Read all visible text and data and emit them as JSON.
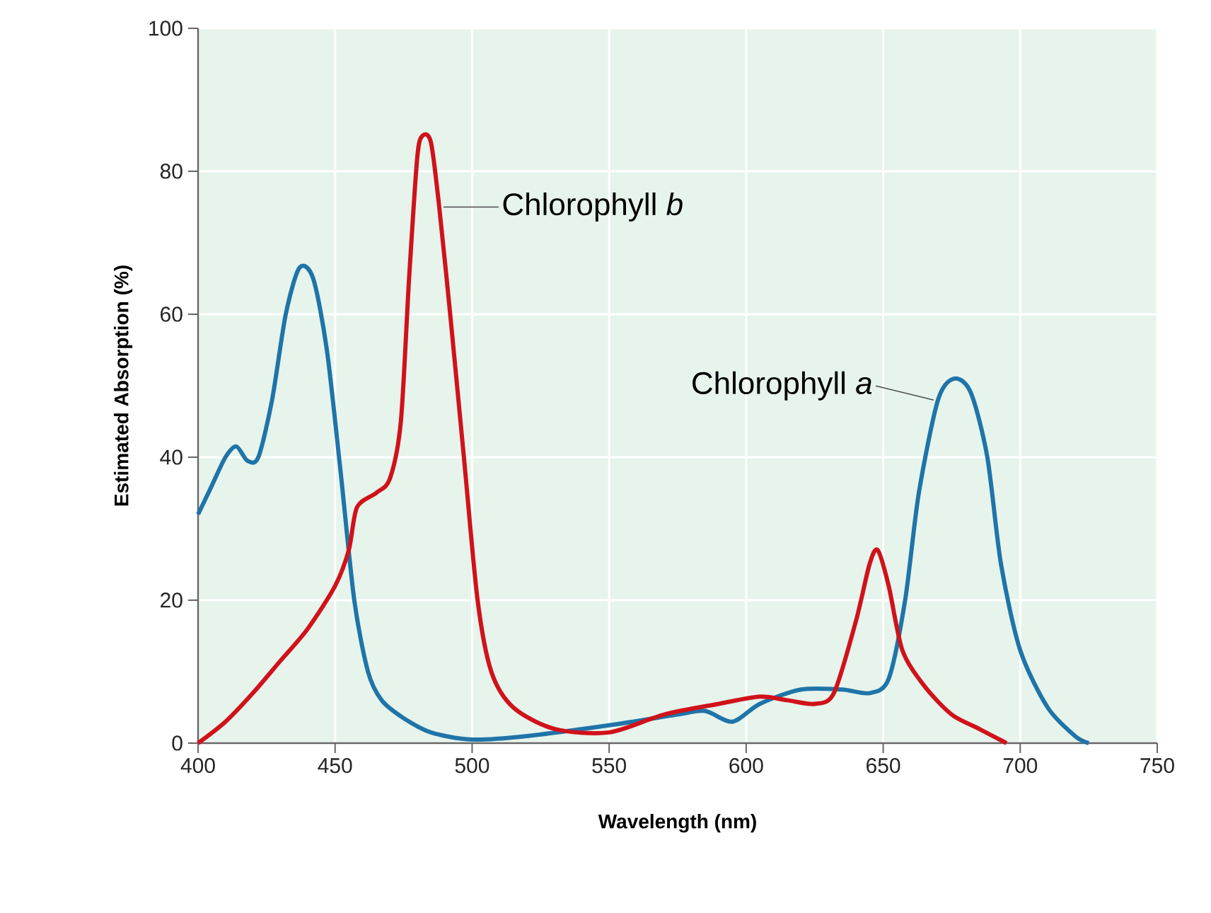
{
  "chart_data": {
    "type": "line",
    "xlabel": "Wavelength (nm)",
    "ylabel": "Estimated Absorption (%)",
    "xlim": [
      400,
      750
    ],
    "ylim": [
      0,
      100
    ],
    "xticks": [
      400,
      450,
      500,
      550,
      600,
      650,
      700,
      750
    ],
    "yticks": [
      0,
      20,
      40,
      60,
      80,
      100
    ],
    "grid": true,
    "marker": "none",
    "line_style": "solid",
    "series": [
      {
        "name": "Chlorophyll *a*",
        "color": "#1f74a8",
        "x": [
          400,
          405,
          410,
          414,
          418,
          422,
          427,
          432,
          437,
          442,
          447,
          452,
          457,
          462,
          467,
          475,
          485,
          500,
          520,
          550,
          575,
          585,
          595,
          605,
          620,
          635,
          645,
          652,
          658,
          663,
          670,
          676,
          682,
          688,
          693,
          700,
          710,
          720,
          725
        ],
        "values": [
          32,
          36,
          40,
          41.5,
          39.5,
          40,
          48,
          60,
          66.5,
          65,
          55,
          38,
          20,
          10,
          6,
          3.5,
          1.5,
          0.5,
          1,
          2.5,
          4,
          4.5,
          3,
          5.5,
          7.5,
          7.5,
          7,
          9,
          20,
          35,
          48,
          51,
          49,
          40,
          25,
          13,
          5,
          1,
          0
        ]
      },
      {
        "name": "Chlorophyll *b*",
        "color": "#d0121b",
        "x": [
          400,
          410,
          420,
          430,
          440,
          450,
          455,
          458,
          465,
          470,
          474,
          477,
          480,
          482,
          485,
          488,
          492,
          497,
          502,
          507,
          515,
          530,
          550,
          570,
          590,
          605,
          615,
          625,
          632,
          640,
          645,
          648,
          652,
          657,
          665,
          675,
          685,
          695
        ],
        "values": [
          0,
          3,
          7,
          11.5,
          16,
          22,
          27,
          33,
          35,
          37,
          45,
          65,
          82,
          85,
          84,
          75,
          60,
          40,
          20,
          10,
          5,
          2,
          1.5,
          4,
          5.5,
          6.5,
          6,
          5.5,
          7,
          17,
          25,
          27,
          22,
          13,
          8,
          4,
          2,
          0
        ]
      }
    ]
  }
}
